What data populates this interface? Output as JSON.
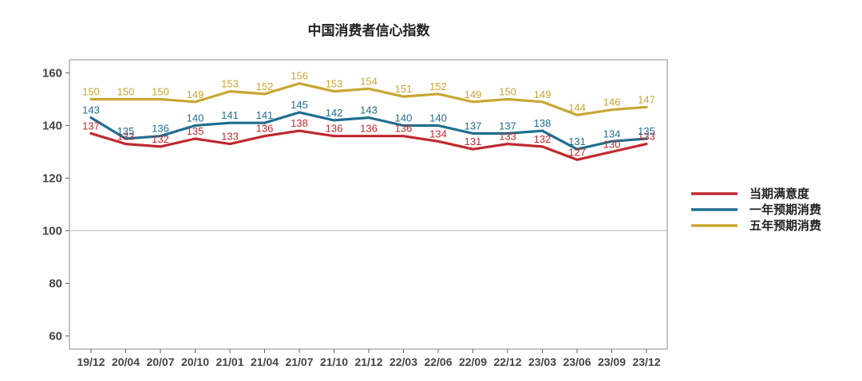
{
  "chart_data": {
    "type": "line",
    "title": "中国消费者信心指数",
    "categories": [
      "19/12",
      "20/04",
      "20/07",
      "20/10",
      "21/01",
      "21/04",
      "21/07",
      "21/10",
      "21/12",
      "22/03",
      "22/06",
      "22/09",
      "22/12",
      "23/03",
      "23/06",
      "23/09",
      "23/12"
    ],
    "ylim": [
      55,
      165
    ],
    "yticks": [
      60,
      80,
      100,
      120,
      140,
      160
    ],
    "reference_line": 100,
    "grid": false,
    "legend_position": "right",
    "series": [
      {
        "name": "当期满意度",
        "color": "#c0282d",
        "values": [
          137,
          133,
          132,
          135,
          133,
          136,
          138,
          136,
          136,
          136,
          134,
          131,
          133,
          132,
          127,
          130,
          133
        ]
      },
      {
        "name": "一年预期消费",
        "color": "#1f6e8f",
        "values": [
          143,
          135,
          136,
          140,
          141,
          141,
          145,
          142,
          143,
          140,
          140,
          137,
          137,
          138,
          131,
          134,
          135
        ]
      },
      {
        "name": "五年预期消费",
        "color": "#c9a632",
        "values": [
          150,
          150,
          150,
          149,
          153,
          152,
          156,
          153,
          154,
          151,
          152,
          149,
          150,
          149,
          144,
          146,
          147
        ]
      }
    ]
  }
}
